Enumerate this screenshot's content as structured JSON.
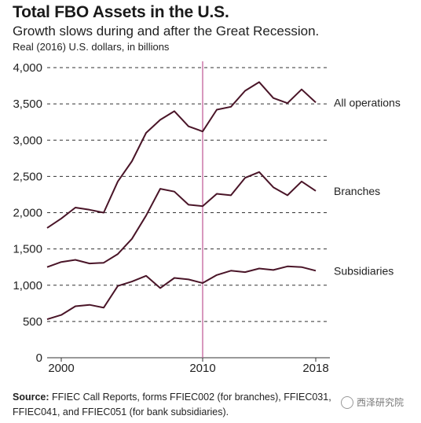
{
  "header": {
    "title": "Total FBO Assets in the U.S.",
    "subtitle": "Growth slows during and after the Great Recession.",
    "unit_label": "Real (2016) U.S. dollars, in billions"
  },
  "source": {
    "label": "Source:",
    "text": "FFIEC Call Reports, forms FFIEC002 (for branches), FFIEC031, FFIEC041, and FFIEC051 (for bank subsidiaries)."
  },
  "watermark": {
    "text": "西泽研究院"
  },
  "chart_data": {
    "type": "line",
    "x": [
      1999,
      2000,
      2001,
      2002,
      2003,
      2004,
      2005,
      2006,
      2007,
      2008,
      2009,
      2010,
      2011,
      2012,
      2013,
      2014,
      2015,
      2016,
      2017,
      2018,
      2019
    ],
    "series": [
      {
        "name": "All operations",
        "color": "#4a1528",
        "values": [
          1790,
          1920,
          2070,
          2040,
          2000,
          2430,
          2710,
          3100,
          3280,
          3400,
          3190,
          3120,
          3420,
          3460,
          3680,
          3800,
          3580,
          3510,
          3700,
          3520,
          null
        ]
      },
      {
        "name": "Branches",
        "color": "#4a1528",
        "values": [
          1250,
          1320,
          1350,
          1300,
          1310,
          1430,
          1640,
          1960,
          2330,
          2290,
          2110,
          2090,
          2260,
          2240,
          2480,
          2560,
          2350,
          2240,
          2430,
          2300,
          null
        ]
      },
      {
        "name": "Subsidiaries",
        "color": "#4a1528",
        "values": [
          530,
          590,
          710,
          730,
          690,
          990,
          1050,
          1130,
          960,
          1100,
          1080,
          1030,
          1140,
          1200,
          1180,
          1230,
          1210,
          1260,
          1250,
          1200,
          null
        ]
      }
    ],
    "xlim": [
      1999,
      2019
    ],
    "ylim": [
      0,
      4000
    ],
    "y_ticks": [
      0,
      500,
      1000,
      1500,
      2000,
      2500,
      3000,
      3500,
      4000
    ],
    "y_tick_labels": [
      "0",
      "500",
      "1,000",
      "1,500",
      "2,000",
      "2,500",
      "3,000",
      "3,500",
      "4,000"
    ],
    "x_ticks": [
      2000,
      2010,
      2018
    ],
    "x_tick_labels": [
      "2000",
      "2010",
      "2018"
    ],
    "annotation_line_x": 2010,
    "annotation_line_color": "#c2619b",
    "grid": "horizontal-dashed",
    "legend": "series labels at right end of lines"
  }
}
